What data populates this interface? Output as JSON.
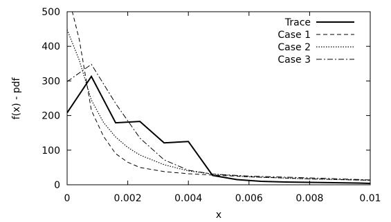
{
  "chart_data": {
    "type": "line",
    "title": "",
    "xlabel": "x",
    "ylabel": "f(x) - pdf",
    "xlim": [
      0,
      0.01
    ],
    "ylim": [
      0,
      500
    ],
    "xticks": [
      0,
      0.002,
      0.004,
      0.006,
      0.008,
      0.01
    ],
    "xtick_labels": [
      "0",
      "0.002",
      "0.004",
      "0.006",
      "0.008",
      "0.01"
    ],
    "yticks": [
      0,
      100,
      200,
      300,
      400,
      500
    ],
    "ytick_labels": [
      "0",
      "100",
      "200",
      "300",
      "400",
      "500"
    ],
    "grid": false,
    "legend_position": "top-right",
    "series": [
      {
        "name": "Trace",
        "style": "solid-bold",
        "x": [
          0,
          0.0008,
          0.0016,
          0.0024,
          0.0032,
          0.004,
          0.0048,
          0.0056,
          0.0064,
          0.0072,
          0.008,
          0.0088,
          0.0096,
          0.01
        ],
        "y": [
          208,
          313,
          179,
          183,
          121,
          125,
          27,
          15,
          10,
          8,
          7,
          6,
          5,
          4
        ]
      },
      {
        "name": "Case 1",
        "style": "dashed",
        "x": [
          0,
          0.0004,
          0.0008,
          0.0012,
          0.0016,
          0.002,
          0.0024,
          0.0032,
          0.004,
          0.0048,
          0.006,
          0.008,
          0.01
        ],
        "y": [
          560,
          420,
          215,
          140,
          90,
          65,
          50,
          38,
          32,
          28,
          23,
          17,
          13
        ]
      },
      {
        "name": "Case 2",
        "style": "dotted",
        "x": [
          0,
          0.0004,
          0.0008,
          0.0012,
          0.0016,
          0.002,
          0.0024,
          0.0032,
          0.004,
          0.0048,
          0.006,
          0.008,
          0.01
        ],
        "y": [
          448,
          360,
          245,
          180,
          138,
          108,
          86,
          58,
          40,
          31,
          23,
          17,
          13
        ]
      },
      {
        "name": "Case 3",
        "style": "dashdot",
        "x": [
          0,
          0.0008,
          0.0016,
          0.0024,
          0.0032,
          0.004,
          0.0048,
          0.006,
          0.008,
          0.01
        ],
        "y": [
          298,
          348,
          235,
          135,
          72,
          42,
          31,
          25,
          20,
          14
        ]
      }
    ]
  }
}
